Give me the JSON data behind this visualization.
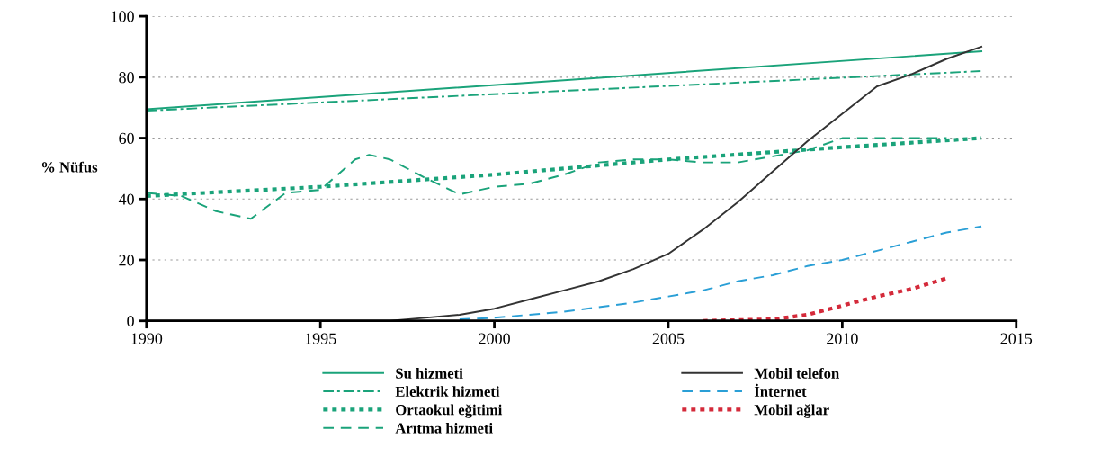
{
  "chart_data": {
    "type": "line",
    "ylabel": "% Nüfus",
    "xlim": [
      1990,
      2015
    ],
    "xticks": [
      1990,
      1995,
      2000,
      2005,
      2010,
      2015
    ],
    "ylim": [
      0,
      100
    ],
    "yticks": [
      0,
      20,
      40,
      60,
      80,
      100
    ],
    "grid": "y",
    "legend": "bottom",
    "marker": "none",
    "series": [
      {
        "name": "Su hizmeti",
        "color": "#1aa37a",
        "line_style": "solid",
        "x": [
          1990,
          2014
        ],
        "values": [
          69.5,
          88.5
        ]
      },
      {
        "name": "Elektrik hizmeti",
        "color": "#1aa37a",
        "line_style": "dashdot",
        "x": [
          1990,
          2014
        ],
        "values": [
          69,
          82
        ]
      },
      {
        "name": "Ortaokul eğitimi",
        "color": "#1aa37a",
        "line_style": "dotted",
        "x": [
          1990,
          1995,
          2000,
          2005,
          2010,
          2014
        ],
        "values": [
          41,
          44,
          48,
          53,
          57,
          60
        ]
      },
      {
        "name": "Arıtma hizmeti",
        "color": "#1aa37a",
        "line_style": "dashed",
        "x": [
          1990,
          1991,
          1992,
          1993,
          1994,
          1995,
          1996,
          1996.4,
          1997,
          1998,
          1999,
          2000,
          2001,
          2002,
          2003,
          2004,
          2005,
          2006,
          2007,
          2008,
          2009,
          2010,
          2011,
          2012,
          2013
        ],
        "values": [
          42,
          41,
          36,
          33.5,
          42,
          43,
          53,
          54.5,
          53,
          47,
          41.5,
          44,
          45,
          48,
          52,
          53,
          53,
          52,
          52,
          54,
          56,
          60,
          60,
          60,
          60
        ]
      },
      {
        "name": "Mobil telefon",
        "color": "#333333",
        "line_style": "solid",
        "x": [
          1990,
          1997,
          1998,
          1999,
          2000,
          2001,
          2002,
          2003,
          2004,
          2005,
          2006,
          2007,
          2008,
          2009,
          2010,
          2011,
          2012,
          2013,
          2014
        ],
        "values": [
          0,
          0,
          1,
          2,
          4,
          7,
          10,
          13,
          17,
          22,
          30,
          39,
          49,
          59,
          68,
          77,
          81,
          86,
          90
        ]
      },
      {
        "name": "İnternet",
        "color": "#2a9fd6",
        "line_style": "dashed",
        "x": [
          1999,
          2000,
          2002,
          2004,
          2005,
          2006,
          2007,
          2008,
          2009,
          2010,
          2011,
          2012,
          2013,
          2014
        ],
        "values": [
          0.5,
          1,
          3,
          6,
          8,
          10,
          13,
          15,
          18,
          20,
          23,
          26,
          29,
          31
        ]
      },
      {
        "name": "Mobil ağlar",
        "color": "#d42a3a",
        "line_style": "dotted",
        "x": [
          2006,
          2008,
          2009,
          2010,
          2011,
          2012,
          2013
        ],
        "values": [
          0,
          0.5,
          2,
          5,
          8,
          10.5,
          14
        ]
      }
    ]
  }
}
